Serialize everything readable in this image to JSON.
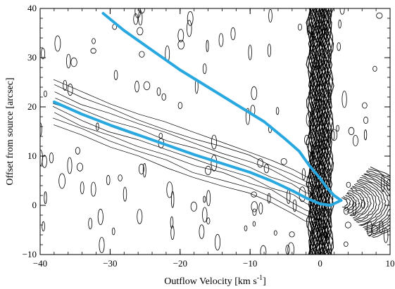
{
  "chart_data": {
    "type": "contour",
    "xlabel": "Outflow Velocity  [km s",
    "xlabel_unit_sup": "-1",
    "xlabel_close": "]",
    "ylabel": "Offset from source [arcsec]",
    "xlim": [
      -40,
      10
    ],
    "ylim": [
      -10,
      40
    ],
    "x_ticks": [
      -40,
      -30,
      -20,
      -10,
      0,
      10
    ],
    "y_ticks": [
      -10,
      0,
      10,
      20,
      30,
      40
    ],
    "line_color": "#29a8e0",
    "contour_color": "#000000",
    "series": [
      {
        "x": [
          -31,
          -28,
          -24,
          -20,
          -16,
          -12,
          -8,
          -5,
          -3,
          -1.5,
          0,
          1,
          2,
          3
        ],
        "y": [
          39,
          35.5,
          31.5,
          27.5,
          24,
          20.5,
          17,
          13.5,
          11,
          8,
          5.5,
          3.5,
          2,
          1
        ]
      },
      {
        "x": [
          -38,
          -34,
          -30,
          -26,
          -22,
          -18,
          -14,
          -10,
          -7,
          -4,
          -2,
          0,
          1.5,
          3
        ],
        "y": [
          21,
          18.5,
          16.3,
          14.3,
          12.3,
          10.3,
          8.5,
          6.7,
          5,
          3,
          1.5,
          0.3,
          0,
          1
        ]
      }
    ]
  }
}
